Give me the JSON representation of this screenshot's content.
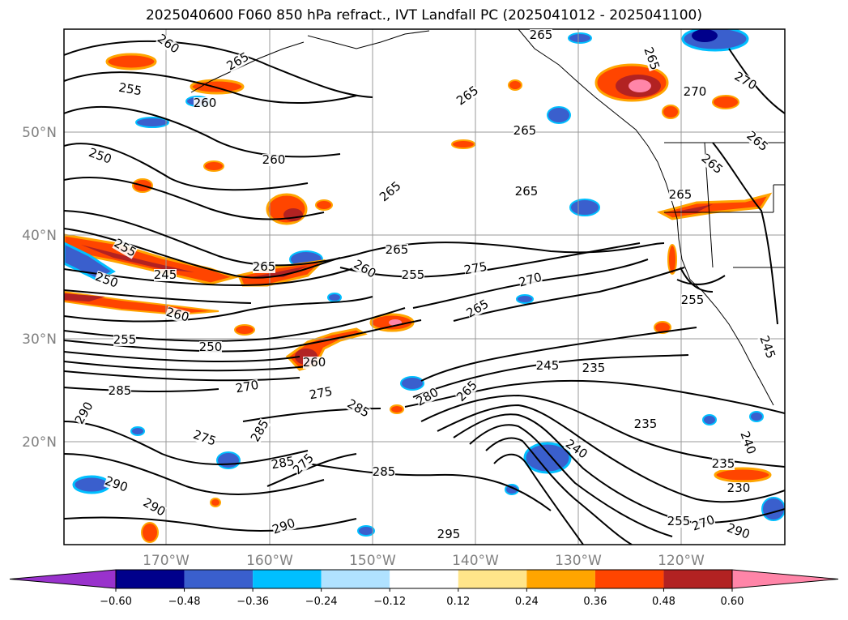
{
  "title": "2025040600 F060 850 hPa refract., IVT Landfall PC (2025041012 - 2025041100)",
  "map": {
    "lat_labels": [
      "50°N",
      "40°N",
      "30°N",
      "20°N"
    ],
    "lon_labels": [
      "170°W",
      "160°W",
      "150°W",
      "140°W",
      "130°W",
      "120°W"
    ],
    "contour_color": "#000000",
    "grid_color": "#999999",
    "contour_labels": [
      {
        "text": "260",
        "id": "a1"
      },
      {
        "text": "265",
        "id": "a2"
      },
      {
        "text": "255",
        "id": "a3"
      },
      {
        "text": "260",
        "id": "a4"
      },
      {
        "text": "250",
        "id": "a5"
      },
      {
        "text": "260",
        "id": "a6"
      },
      {
        "text": "265",
        "id": "a7"
      },
      {
        "text": "265",
        "id": "a8"
      },
      {
        "text": "265",
        "id": "a9"
      },
      {
        "text": "265",
        "id": "a10"
      },
      {
        "text": "265",
        "id": "a11"
      },
      {
        "text": "270",
        "id": "a12"
      },
      {
        "text": "265",
        "id": "a13"
      },
      {
        "text": "270",
        "id": "a14"
      },
      {
        "text": "265",
        "id": "a15"
      },
      {
        "text": "265",
        "id": "a16"
      },
      {
        "text": "265",
        "id": "a17"
      },
      {
        "text": "255",
        "id": "a18"
      },
      {
        "text": "250",
        "id": "a19"
      },
      {
        "text": "245",
        "id": "a20"
      },
      {
        "text": "265",
        "id": "a21"
      },
      {
        "text": "265",
        "id": "a22"
      },
      {
        "text": "260",
        "id": "a23"
      },
      {
        "text": "255",
        "id": "a24"
      },
      {
        "text": "275",
        "id": "a25"
      },
      {
        "text": "270",
        "id": "a26"
      },
      {
        "text": "260",
        "id": "a27"
      },
      {
        "text": "265",
        "id": "a28"
      },
      {
        "text": "255",
        "id": "a29"
      },
      {
        "text": "250",
        "id": "a30"
      },
      {
        "text": "260",
        "id": "a31"
      },
      {
        "text": "285",
        "id": "a32"
      },
      {
        "text": "270",
        "id": "a33"
      },
      {
        "text": "275",
        "id": "a34"
      },
      {
        "text": "285",
        "id": "a35"
      },
      {
        "text": "280",
        "id": "a36"
      },
      {
        "text": "265",
        "id": "a37"
      },
      {
        "text": "245",
        "id": "a38"
      },
      {
        "text": "235",
        "id": "a39"
      },
      {
        "text": "290",
        "id": "a40"
      },
      {
        "text": "235",
        "id": "a41"
      },
      {
        "text": "275",
        "id": "a42"
      },
      {
        "text": "285",
        "id": "a43"
      },
      {
        "text": "285",
        "id": "a44"
      },
      {
        "text": "240",
        "id": "a45"
      },
      {
        "text": "240",
        "id": "a46"
      },
      {
        "text": "290",
        "id": "a47"
      },
      {
        "text": "290",
        "id": "a48"
      },
      {
        "text": "235",
        "id": "a49"
      },
      {
        "text": "230",
        "id": "a50"
      },
      {
        "text": "290",
        "id": "a51"
      },
      {
        "text": "295",
        "id": "a52"
      },
      {
        "text": "255",
        "id": "a53"
      },
      {
        "text": "270",
        "id": "a54"
      },
      {
        "text": "290",
        "id": "a55"
      },
      {
        "text": "285",
        "id": "a56"
      },
      {
        "text": "275",
        "id": "a57"
      },
      {
        "text": "245",
        "id": "a58"
      },
      {
        "text": "255",
        "id": "a59"
      }
    ]
  },
  "colorbar": {
    "ticks": [
      "−0.60",
      "−0.48",
      "−0.36",
      "−0.24",
      "−0.12",
      "0.12",
      "0.24",
      "0.36",
      "0.48",
      "0.60"
    ],
    "colors": [
      "#9932cc",
      "#00008b",
      "#3a5fcd",
      "#00bfff",
      "#b0e2ff",
      "#ffffff",
      "#ffe58a",
      "#ffa500",
      "#ff4500",
      "#b22222",
      "#ff85a8"
    ]
  }
}
